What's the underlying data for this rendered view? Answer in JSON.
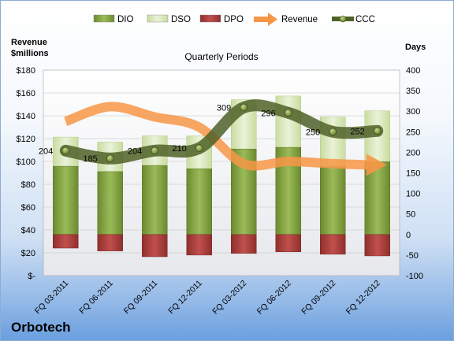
{
  "company": "Orbotech",
  "chart_data": {
    "type": "bar",
    "title": "Quarterly Periods",
    "left_axis_label": "Revenue $millions",
    "right_axis_label": "Days",
    "left_axis": {
      "ylim": [
        0,
        180
      ],
      "step": 20,
      "tick_labels": [
        "$-",
        "$20",
        "$40",
        "$60",
        "$80",
        "$100",
        "$120",
        "$140",
        "$160",
        "$180"
      ]
    },
    "right_axis": {
      "ylim": [
        -100,
        400
      ],
      "step": 50,
      "tick_labels": [
        "-100",
        "-50",
        "0",
        "50",
        "100",
        "150",
        "200",
        "250",
        "300",
        "350",
        "400"
      ]
    },
    "categories": [
      "FQ 03-2011",
      "FQ 06-2011",
      "FQ 09-2011",
      "FQ 12-2011",
      "FQ 03-2012",
      "FQ 06-2012",
      "FQ 09-2012",
      "FQ 12-2012"
    ],
    "legend": {
      "placement": "top",
      "entries": [
        "DIO",
        "DSO",
        "DPO",
        "Revenue",
        "CCC"
      ]
    },
    "series": [
      {
        "name": "DIO",
        "kind": "stacked-bar",
        "axis": "days",
        "color": "#77933c",
        "values": [
          166,
          153,
          168,
          160,
          208,
          212,
          165,
          177
        ]
      },
      {
        "name": "DSO",
        "kind": "stacked-bar",
        "axis": "days",
        "color": "#d7e4bd",
        "values": [
          71,
          72,
          72,
          80,
          120,
          125,
          121,
          124
        ]
      },
      {
        "name": "DPO",
        "kind": "negative-bar",
        "axis": "days",
        "color": "#c0504d",
        "values": [
          -33,
          -40,
          -54,
          -50,
          -46,
          -42,
          -48,
          -52
        ]
      },
      {
        "name": "Revenue",
        "kind": "line-arrow",
        "axis": "revenue",
        "color": "#f79646",
        "values": [
          135,
          148,
          139,
          130,
          98,
          100,
          98,
          97
        ]
      },
      {
        "name": "CCC",
        "kind": "line",
        "axis": "days",
        "color": "#4f6228",
        "values": [
          204,
          185,
          204,
          210,
          309,
          296,
          250,
          252
        ],
        "data_labels": [
          "204",
          "185",
          "204",
          "210",
          "309",
          "296",
          "250",
          "252"
        ]
      }
    ]
  }
}
